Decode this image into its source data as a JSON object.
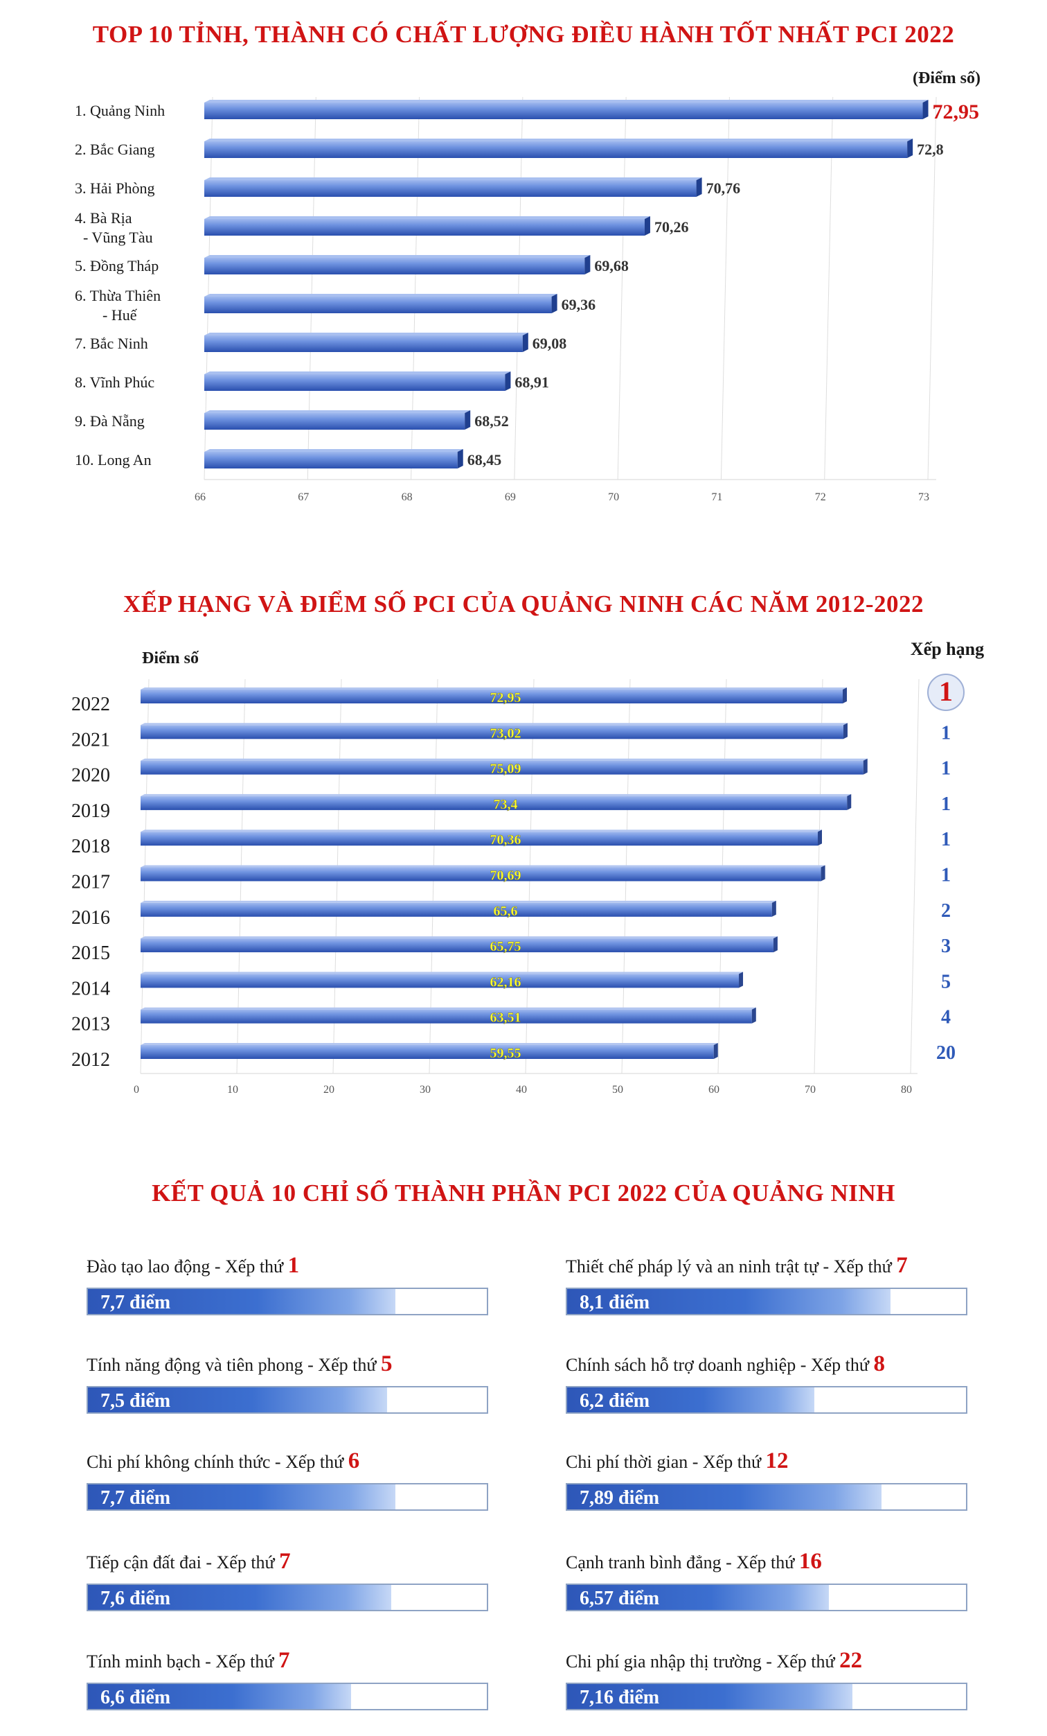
{
  "chart_data": [
    {
      "type": "bar",
      "orientation": "horizontal",
      "title": "TOP 10 TỈNH, THÀNH CÓ CHẤT LƯỢNG ĐIỀU HÀNH TỐT NHẤT PCI 2022",
      "unit_label": "(Điểm số)",
      "categories": [
        "1. Quảng Ninh",
        "2. Bắc Giang",
        "3. Hải Phòng",
        "4. Bà Rịa\n- Vũng Tàu",
        "5. Đồng Tháp",
        "6. Thừa Thiên\n- Huế",
        "7. Bắc Ninh",
        "8. Vĩnh Phúc",
        "9. Đà Nẵng",
        "10. Long An"
      ],
      "values": [
        72.95,
        72.8,
        70.76,
        70.26,
        69.68,
        69.36,
        69.08,
        68.91,
        68.52,
        68.45
      ],
      "value_labels": [
        "72,95",
        "72,8",
        "70,76",
        "70,26",
        "69,68",
        "69,36",
        "69,08",
        "68,91",
        "68,52",
        "68,45"
      ],
      "xlim": [
        66,
        73
      ],
      "xticks": [
        "66",
        "67",
        "68",
        "69",
        "70",
        "71",
        "72",
        "73"
      ]
    },
    {
      "type": "bar",
      "orientation": "horizontal",
      "title": "XẾP HẠNG VÀ ĐIỂM SỐ PCI CỦA QUẢNG NINH CÁC NĂM 2012-2022",
      "score_label": "Điểm số",
      "rank_header": "Xếp hạng",
      "categories": [
        "2022",
        "2021",
        "2020",
        "2019",
        "2018",
        "2017",
        "2016",
        "2015",
        "2014",
        "2013",
        "2012"
      ],
      "values": [
        72.95,
        73.02,
        75.09,
        73.4,
        70.36,
        70.69,
        65.6,
        65.75,
        62.16,
        63.51,
        59.55
      ],
      "value_labels": [
        "72,95",
        "73,02",
        "75,09",
        "73,4",
        "70,36",
        "70,69",
        "65,6",
        "65,75",
        "62,16",
        "63,51",
        "59,55"
      ],
      "ranks": [
        "1",
        "1",
        "1",
        "1",
        "1",
        "1",
        "2",
        "3",
        "5",
        "4",
        "20"
      ],
      "xlim": [
        0,
        80
      ],
      "xticks": [
        "0",
        "10",
        "20",
        "30",
        "40",
        "50",
        "60",
        "70",
        "80"
      ]
    }
  ],
  "indicators": {
    "title": "KẾT QUẢ 10 CHỈ SỐ THÀNH PHẦN PCI 2022 CỦA QUẢNG NINH",
    "items": [
      {
        "name": "Đào tạo lao động - Xếp thứ ",
        "rank": "1",
        "value": 7.7,
        "value_label": "7,7 điểm"
      },
      {
        "name": "Thiết chế pháp lý và an ninh trật tự - Xếp thứ ",
        "rank": "7",
        "value": 8.1,
        "value_label": "8,1 điểm"
      },
      {
        "name": "Tính năng động và tiên phong - Xếp thứ ",
        "rank": "5",
        "value": 7.5,
        "value_label": "7,5 điểm"
      },
      {
        "name": "Chính sách hỗ trợ doanh nghiệp - Xếp thứ ",
        "rank": "8",
        "value": 6.2,
        "value_label": "6,2 điểm"
      },
      {
        "name": "Chi phí không chính thức - Xếp thứ ",
        "rank": "6",
        "value": 7.7,
        "value_label": "7,7 điểm"
      },
      {
        "name": "Chi phí thời gian - Xếp thứ ",
        "rank": "12",
        "value": 7.89,
        "value_label": "7,89 điểm"
      },
      {
        "name": "Tiếp cận đất đai - Xếp thứ ",
        "rank": "7",
        "value": 7.6,
        "value_label": "7,6 điểm"
      },
      {
        "name": "Cạnh tranh bình đẳng - Xếp thứ ",
        "rank": "16",
        "value": 6.57,
        "value_label": "6,57 điểm"
      },
      {
        "name": "Tính minh bạch - Xếp thứ ",
        "rank": "7",
        "value": 6.6,
        "value_label": "6,6 điểm"
      },
      {
        "name": "Chi phí gia nhập thị trường - Xếp thứ ",
        "rank": "22",
        "value": 7.16,
        "value_label": "7,16 điểm"
      }
    ]
  },
  "colors": {
    "title": "#d01414",
    "bar_dark": "#2a4fae",
    "bar_light": "#6f93e0",
    "rank_blue": "#2f5ab8",
    "value_yellow": "#ffff33"
  }
}
